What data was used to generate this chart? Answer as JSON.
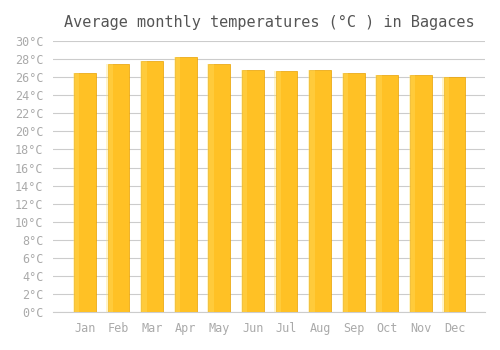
{
  "title": "Average monthly temperatures (°C ) in Bagaces",
  "months": [
    "Jan",
    "Feb",
    "Mar",
    "Apr",
    "May",
    "Jun",
    "Jul",
    "Aug",
    "Sep",
    "Oct",
    "Nov",
    "Dec"
  ],
  "values": [
    26.5,
    27.5,
    27.8,
    28.2,
    27.5,
    26.8,
    26.7,
    26.8,
    26.5,
    26.2,
    26.2,
    26.0
  ],
  "bar_color_gradient_top": "#FFC125",
  "bar_color_gradient_bottom": "#FFD700",
  "bar_edge_color": "#E8A000",
  "background_color": "#FFFFFF",
  "grid_color": "#CCCCCC",
  "ylim": [
    0,
    30
  ],
  "ytick_step": 2,
  "tick_label_color": "#AAAAAA",
  "title_color": "#555555",
  "title_fontsize": 11,
  "tick_fontsize": 8.5,
  "font_family": "monospace"
}
